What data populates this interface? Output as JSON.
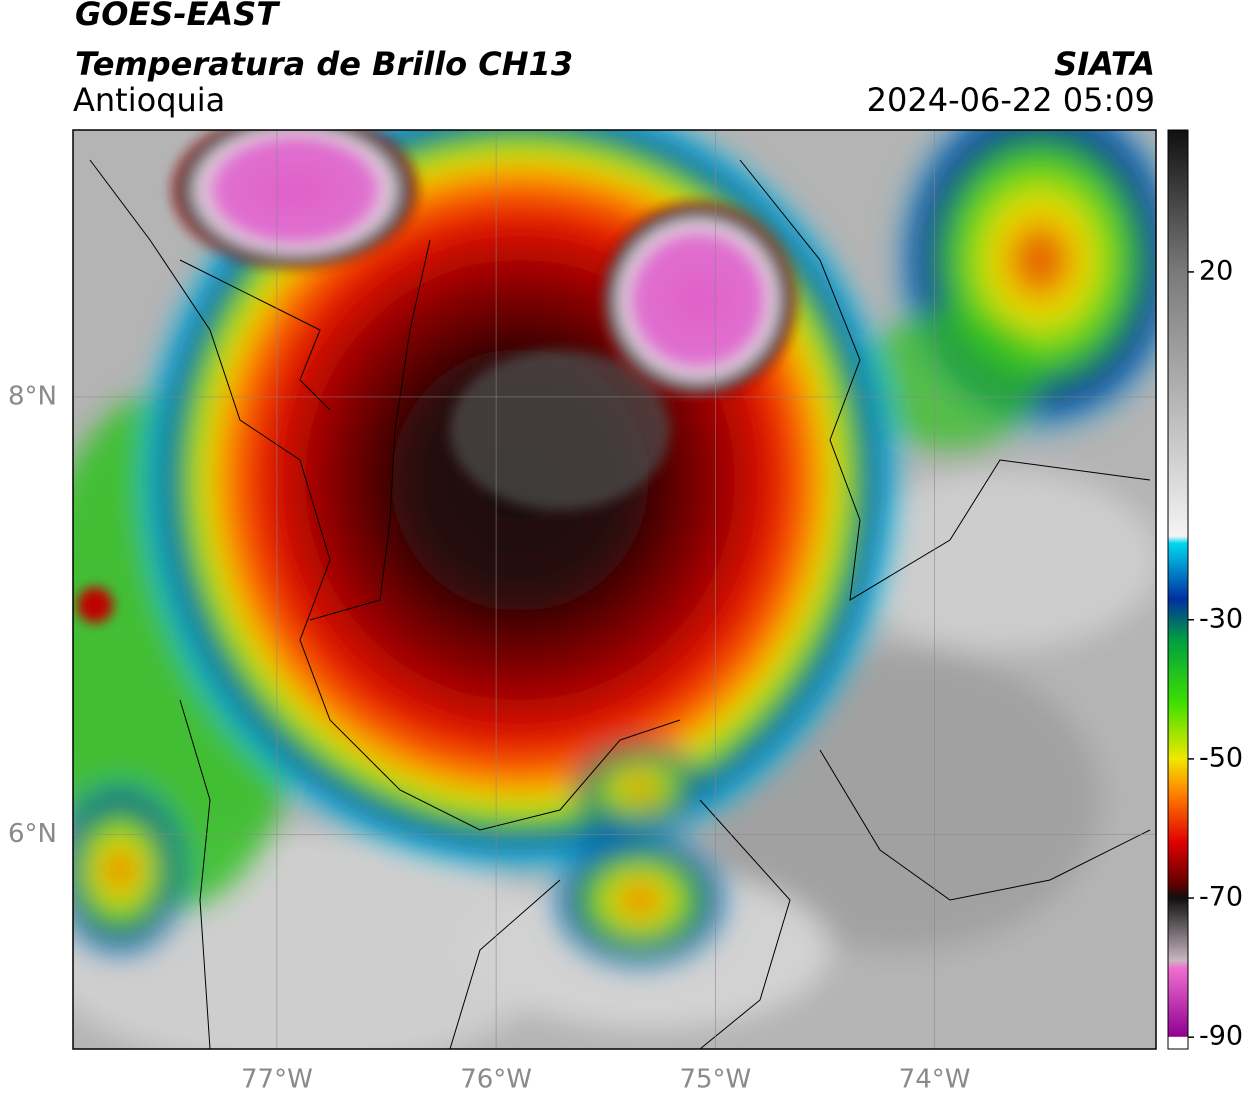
{
  "header": {
    "title": "GOES-EAST",
    "subtitle": "Temperatura de Brillo CH13",
    "region": "Antioquia",
    "source": "SIATA",
    "datetime": "2024-06-22 05:09"
  },
  "map": {
    "xlim": [
      -77.93,
      -72.99
    ],
    "ylim": [
      5.02,
      9.22
    ],
    "xticks": [
      {
        "value": -77,
        "label": "77°W"
      },
      {
        "value": -76,
        "label": "76°W"
      },
      {
        "value": -75,
        "label": "75°W"
      },
      {
        "value": -74,
        "label": "74°W"
      }
    ],
    "yticks": [
      {
        "value": 8,
        "label": "8°N"
      },
      {
        "value": 6,
        "label": "6°N"
      }
    ],
    "grid": true
  },
  "colorbar": {
    "lim": [
      -91.7,
      40.4
    ],
    "ticks": [
      20,
      -30,
      -50,
      -70,
      -90
    ],
    "colormap": [
      {
        "value": 40.4,
        "color": "#101010"
      },
      {
        "value": 20,
        "color": "#7a7a7a"
      },
      {
        "value": -18,
        "color": "#f4f4f4"
      },
      {
        "value": -19,
        "color": "#00d8f0"
      },
      {
        "value": -27,
        "color": "#0030a0"
      },
      {
        "value": -33,
        "color": "#00a040"
      },
      {
        "value": -42,
        "color": "#40e000"
      },
      {
        "value": -50,
        "color": "#f0e800"
      },
      {
        "value": -55,
        "color": "#ff8000"
      },
      {
        "value": -62,
        "color": "#e00000"
      },
      {
        "value": -68,
        "color": "#600000"
      },
      {
        "value": -70,
        "color": "#101010"
      },
      {
        "value": -79,
        "color": "#c8b8c0"
      },
      {
        "value": -80,
        "color": "#f070d0"
      },
      {
        "value": -89.9,
        "color": "#900090"
      },
      {
        "value": -90,
        "color": "#ffffff"
      }
    ]
  }
}
